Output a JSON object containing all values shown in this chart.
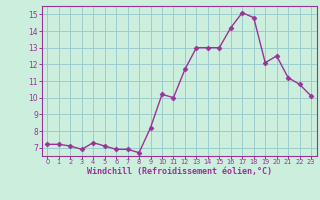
{
  "x": [
    0,
    1,
    2,
    3,
    4,
    5,
    6,
    7,
    8,
    9,
    10,
    11,
    12,
    13,
    14,
    15,
    16,
    17,
    18,
    19,
    20,
    21,
    22,
    23
  ],
  "y": [
    7.2,
    7.2,
    7.1,
    6.9,
    7.3,
    7.1,
    6.9,
    6.9,
    6.7,
    8.2,
    10.2,
    10.0,
    11.7,
    13.0,
    13.0,
    13.0,
    14.2,
    15.1,
    14.8,
    12.1,
    12.5,
    11.2,
    10.8,
    10.1
  ],
  "line_color": "#993399",
  "marker_color": "#993399",
  "bg_color": "#cceedd",
  "grid_color": "#99cccc",
  "xlabel": "Windchill (Refroidissement éolien,°C)",
  "xlabel_color": "#993399",
  "tick_color": "#993399",
  "spine_color": "#993399",
  "ylim": [
    6.5,
    15.5
  ],
  "yticks": [
    7,
    8,
    9,
    10,
    11,
    12,
    13,
    14,
    15
  ],
  "xlim": [
    -0.5,
    23.5
  ],
  "xticks": [
    0,
    1,
    2,
    3,
    4,
    5,
    6,
    7,
    8,
    9,
    10,
    11,
    12,
    13,
    14,
    15,
    16,
    17,
    18,
    19,
    20,
    21,
    22,
    23
  ]
}
